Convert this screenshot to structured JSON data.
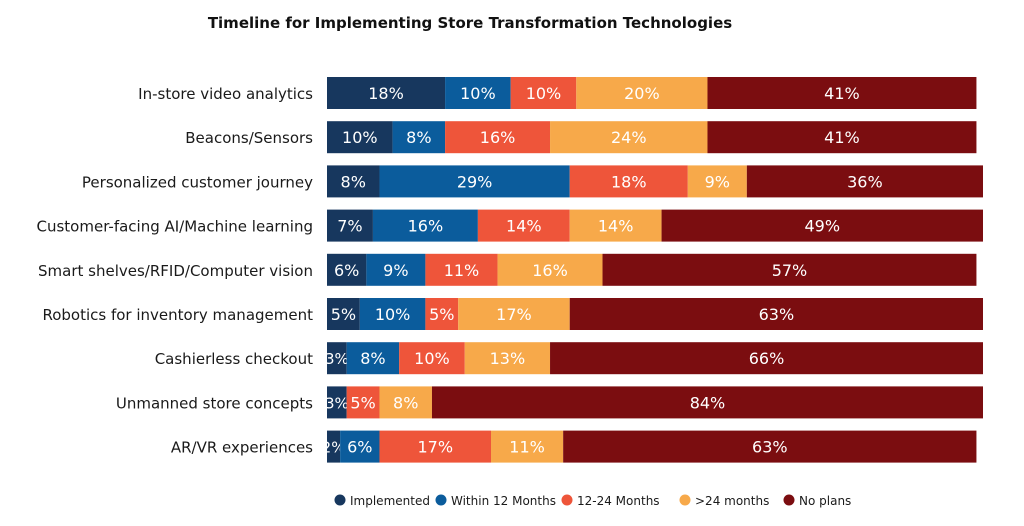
{
  "colors": {
    "implemented": "#17375e",
    "within_12": "#0b5c9c",
    "m12_24": "#ee553a",
    "gt24": "#f7a94a",
    "no_plans": "#7b0d10"
  },
  "chart_data": {
    "type": "bar",
    "orientation": "horizontal",
    "stacked": true,
    "title": "Timeline for Implementing Store Transformation Technologies",
    "categories": [
      "In-store video analytics",
      "Beacons/Sensors",
      "Personalized customer journey",
      "Customer-facing AI/Machine learning",
      "Smart shelves/RFID/Computer vision",
      "Robotics for inventory management",
      "Cashierless checkout",
      "Unmanned store concepts",
      "AR/VR experiences"
    ],
    "series": [
      {
        "name": "Implemented",
        "color_key": "implemented",
        "values": [
          18,
          10,
          8,
          7,
          6,
          5,
          3,
          3,
          2
        ]
      },
      {
        "name": "Within 12 Months",
        "color_key": "within_12",
        "values": [
          10,
          8,
          29,
          16,
          9,
          10,
          8,
          0,
          6
        ]
      },
      {
        "name": "12-24 Months",
        "color_key": "m12_24",
        "values": [
          10,
          16,
          18,
          14,
          11,
          5,
          10,
          5,
          17
        ]
      },
      {
        "name": ">24 months",
        "color_key": "gt24",
        "values": [
          20,
          24,
          9,
          14,
          16,
          17,
          13,
          8,
          11
        ]
      },
      {
        "name": "No plans",
        "color_key": "no_plans",
        "values": [
          41,
          41,
          36,
          49,
          57,
          63,
          66,
          84,
          63
        ]
      }
    ],
    "value_suffix": "%",
    "grid": false,
    "legend_position": "bottom"
  }
}
